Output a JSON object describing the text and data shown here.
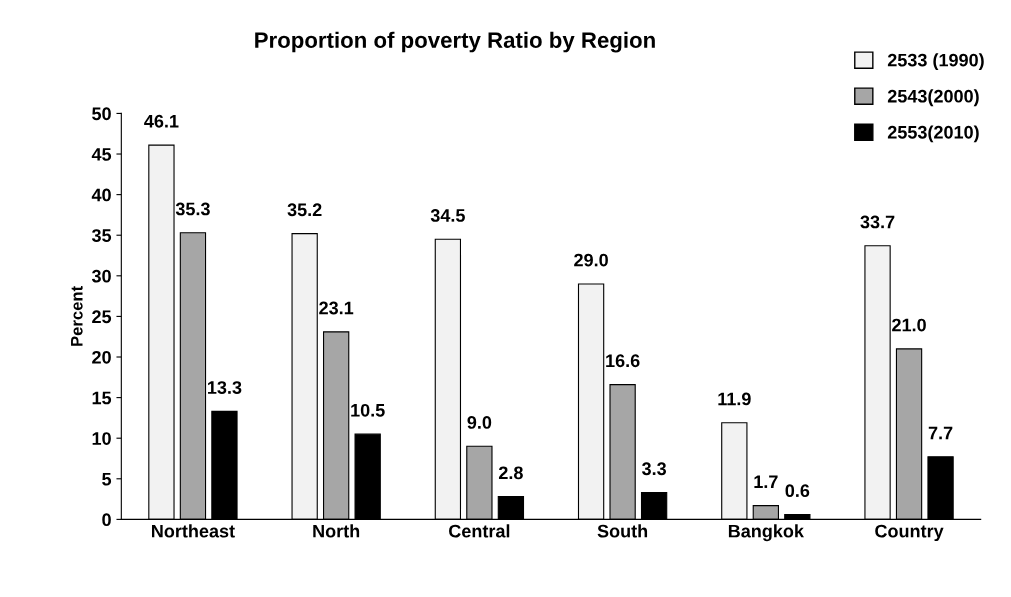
{
  "chart_data": {
    "type": "bar",
    "title": "Proportion of poverty Ratio by Region",
    "ylabel": "Percent",
    "categories": [
      "Northeast",
      "North",
      "Central",
      "South",
      "Bangkok",
      "Country"
    ],
    "series": [
      {
        "name": "2533 (1990)",
        "color": "#f2f2f2",
        "values": [
          46.1,
          35.2,
          34.5,
          29.0,
          11.9,
          33.7
        ],
        "value_labels": [
          "46.1",
          "35.2",
          "34.5",
          "29.0",
          "11.9",
          "33.7"
        ]
      },
      {
        "name": "2543(2000)",
        "color": "#a6a6a6",
        "values": [
          35.3,
          23.1,
          9.0,
          16.6,
          1.7,
          21.0
        ],
        "value_labels": [
          "35.3",
          "23.1",
          "9.0",
          "16.6",
          "1.7",
          "21.0"
        ]
      },
      {
        "name": "2553(2010)",
        "color": "#000000",
        "values": [
          13.3,
          10.5,
          2.8,
          3.3,
          0.6,
          7.7
        ],
        "value_labels": [
          "13.3",
          "10.5",
          "2.8",
          "3.3",
          "0.6",
          "7.7"
        ]
      }
    ],
    "ylim": [
      0,
      50
    ],
    "yticks": [
      0,
      5,
      10,
      15,
      20,
      25,
      30,
      35,
      40,
      45,
      50
    ],
    "grid": false,
    "legend": "top right"
  }
}
